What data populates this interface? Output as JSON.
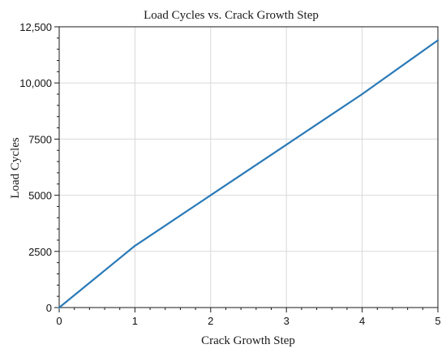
{
  "chart_data": {
    "type": "line",
    "title": "Load Cycles vs. Crack Growth Step",
    "xlabel": "Crack Growth Step",
    "ylabel": "Load Cycles",
    "xlim": [
      0,
      5
    ],
    "ylim": [
      0,
      12500
    ],
    "x_ticks": [
      0,
      1,
      2,
      3,
      4,
      5
    ],
    "x_tick_labels": [
      "0",
      "1",
      "2",
      "3",
      "4",
      "5"
    ],
    "y_ticks": [
      0,
      2500,
      5000,
      7500,
      10000,
      12500
    ],
    "y_tick_labels": [
      "0",
      "2500",
      "5000",
      "7500",
      "10,000",
      "12,500"
    ],
    "grid": true,
    "legend": "none",
    "series": [
      {
        "color": "#2a7ab8",
        "x": [
          0,
          1,
          2,
          3,
          4,
          5
        ],
        "y": [
          0,
          2750,
          5000,
          7250,
          9500,
          11900
        ]
      }
    ]
  }
}
